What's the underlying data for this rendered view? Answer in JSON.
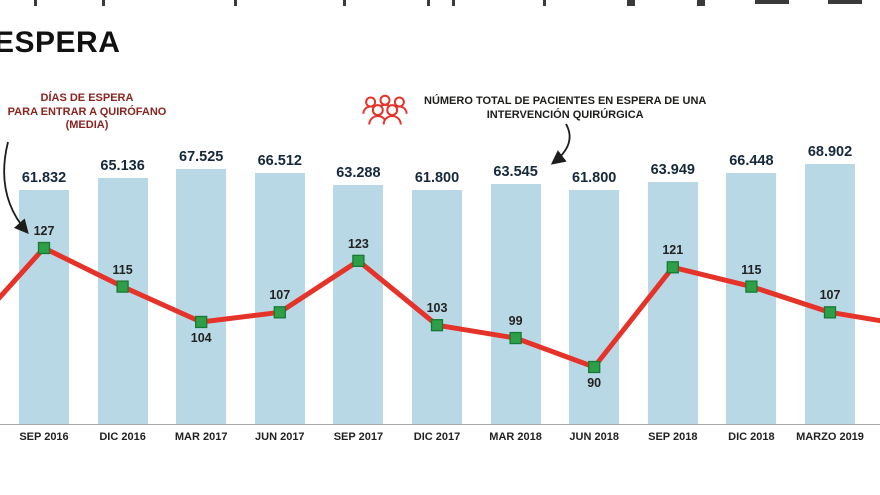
{
  "title": "ESPERA",
  "annotations": {
    "days": {
      "lines": [
        "DÍAS DE ESPERA",
        "PARA ENTRAR A QUIRÓFANO",
        "(MEDIA)"
      ]
    },
    "patients": {
      "lines": [
        "NÚMERO TOTAL DE PACIENTES EN ESPERA DE UNA",
        "INTERVENCIÓN QUIRÚRGICA"
      ],
      "icon": "patients-group-icon"
    }
  },
  "chart_data": {
    "type": "bar",
    "title": "ESPERA",
    "categories": [
      "SEP 2016",
      "DIC 2016",
      "MAR 2017",
      "JUN 2017",
      "SEP 2017",
      "DIC 2017",
      "MAR 2018",
      "JUN 2018",
      "SEP 2018",
      "DIC 2018",
      "MARZO 2019"
    ],
    "series": [
      {
        "name": "Número total de pacientes en espera de una intervención quirúrgica",
        "type": "bar",
        "values": [
          61832,
          65136,
          67525,
          66512,
          63288,
          61800,
          63545,
          61800,
          63949,
          66448,
          68902
        ],
        "value_labels": [
          "61.832",
          "65.136",
          "67.525",
          "66.512",
          "63.288",
          "61.800",
          "63.545",
          "61.800",
          "63.949",
          "66.448",
          "68.902"
        ],
        "color": "#b9d8e6"
      },
      {
        "name": "Días de espera para entrar a quirófano (media)",
        "type": "line",
        "values": [
          127,
          115,
          104,
          107,
          123,
          103,
          99,
          90,
          121,
          115,
          107
        ],
        "color": "#e5332a",
        "marker_color": "#2f9e48",
        "marker_border": "#157a33",
        "left_edge_value": 109,
        "right_edge_value": 104
      }
    ],
    "ylim_bars": [
      0,
      70000
    ],
    "ylim_line_visible": [
      90,
      127
    ],
    "grid": false,
    "legend_position": "annotations above chart"
  },
  "colors": {
    "bar": "#b9d8e6",
    "line": "#e5332a",
    "marker": "#2f9e48",
    "marker_border": "#157a33",
    "bar_label": "#16293b",
    "axis_label": "#222222",
    "annotation_days": "#8a2420",
    "annotation_patients": "#1d1d1b",
    "title": "#111111",
    "arrow": "#1d1d1b"
  }
}
